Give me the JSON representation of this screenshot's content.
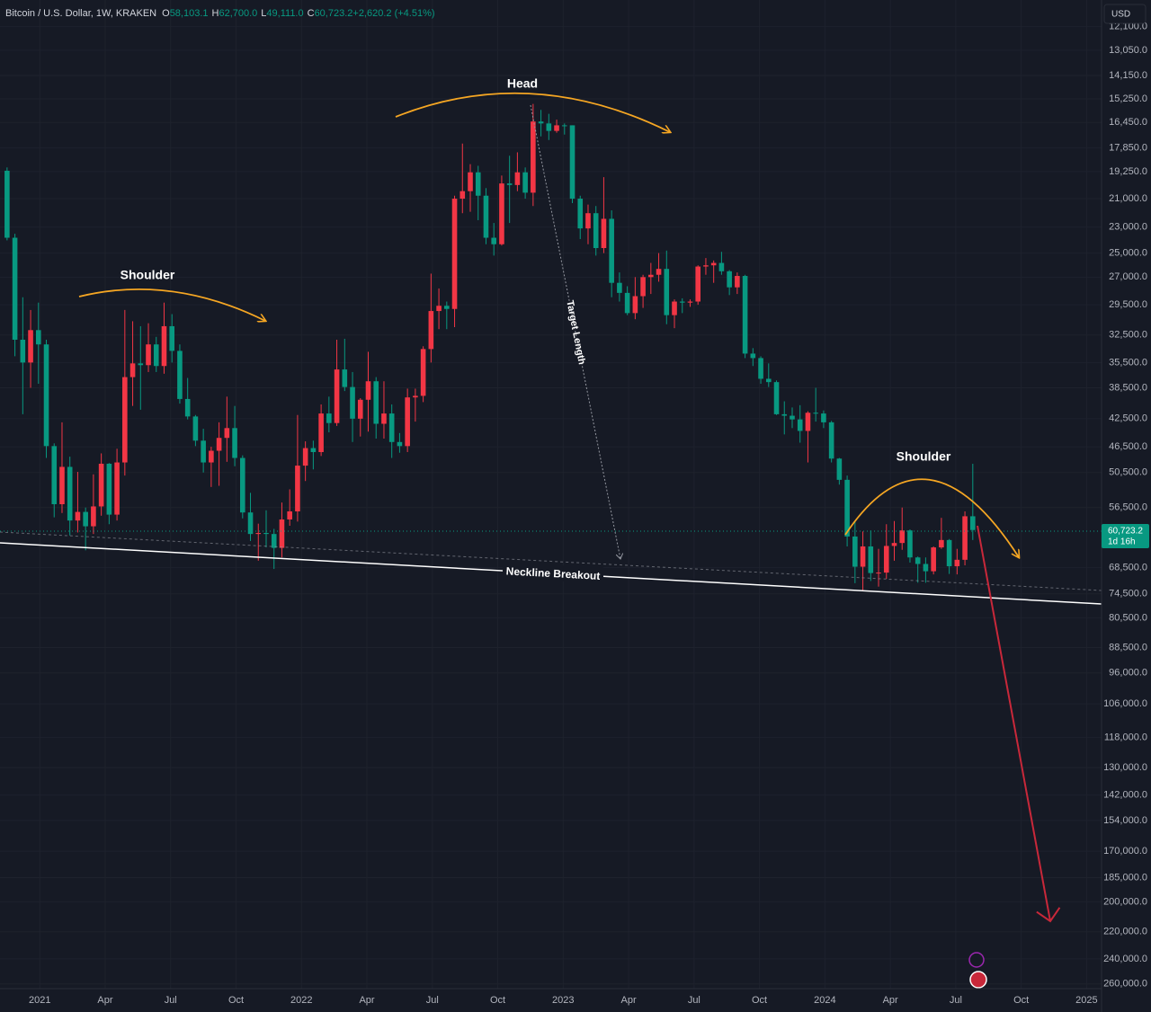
{
  "chart_data": {
    "type": "candlestick",
    "header": {
      "symbol": "Bitcoin / U.S. Dollar, 1W, KRAKEN",
      "fields": [
        {
          "key": "O",
          "value": "58,103.1"
        },
        {
          "key": "H",
          "value": "62,700.0"
        },
        {
          "key": "L",
          "value": "49,111.0"
        },
        {
          "key": "C",
          "value": "60,723.2"
        },
        {
          "key": "",
          "value": "+2,620.2 (+4.51%)"
        }
      ]
    },
    "currency": "USD",
    "annotations": {
      "head": "Head",
      "left_shoulder": "Shoulder",
      "right_shoulder": "Shoulder",
      "target": "Target Length",
      "neckline": "Neckline Breakout"
    },
    "last_price_label": "60,723.2",
    "countdown": "1d 16h",
    "colors": {
      "up": "#089981",
      "down": "#f23645"
    },
    "log": true,
    "inverted": true,
    "grid": true,
    "open": [
      19200,
      23800,
      33000,
      35500,
      32000,
      33500,
      46400,
      55900,
      49600,
      58900,
      57300,
      60000,
      56300,
      49100,
      57800,
      48900,
      37200,
      35600,
      35800,
      33500,
      35900,
      31600,
      34200,
      39900,
      42200,
      45600,
      48900,
      47100,
      45200,
      43800,
      48200,
      57400,
      61500,
      61300,
      61500,
      64300,
      58700,
      57200,
      49400,
      46700,
      47300,
      41800,
      43100,
      36300,
      38400,
      42500,
      40000,
      37700,
      43200,
      41800,
      45800,
      46400,
      39700,
      39500,
      34000,
      30100,
      29600,
      29900,
      21000,
      20500,
      19300,
      20800,
      23800,
      24300,
      20000,
      20100,
      19300,
      20600,
      16400,
      16500,
      16900,
      16600,
      16600,
      21000,
      23100,
      22000,
      24600,
      22400,
      27500,
      28400,
      30300,
      28700,
      27000,
      26800,
      26300,
      30500,
      29200,
      29300,
      29200,
      26100,
      26000,
      25800,
      26500,
      27900,
      26900,
      34500,
      35000,
      37400,
      37800,
      41900,
      42100,
      42600,
      44200,
      41700,
      41800,
      43000,
      48300,
      51700,
      62000,
      68300,
      64000,
      69700,
      69600,
      63900,
      63300,
      60800,
      66300,
      67700,
      69300,
      64200,
      62700,
      68200,
      66800,
      58103.1
    ],
    "high": [
      24000,
      34800,
      41900,
      38500,
      38000,
      48200,
      58300,
      57500,
      61800,
      61200,
      64800,
      61500,
      58000,
      59600,
      58900,
      51000,
      40800,
      41300,
      36600,
      36600,
      36800,
      35500,
      40500,
      42600,
      46400,
      50500,
      52900,
      52700,
      48800,
      49500,
      58500,
      62900,
      67000,
      64200,
      68800,
      66300,
      59900,
      59100,
      51900,
      50000,
      47900,
      44400,
      43500,
      38900,
      45800,
      45000,
      44300,
      45300,
      45300,
      48200,
      47400,
      47300,
      42900,
      40300,
      35500,
      31900,
      31900,
      31700,
      22000,
      21900,
      22500,
      24300,
      25200,
      24400,
      22700,
      20500,
      21000,
      21500,
      17200,
      17400,
      17000,
      17100,
      21300,
      23900,
      24300,
      25200,
      25000,
      28800,
      29200,
      30500,
      30900,
      29800,
      28500,
      27400,
      31400,
      31800,
      30300,
      29700,
      29500,
      26800,
      27500,
      26800,
      28600,
      28500,
      35000,
      35900,
      38000,
      38400,
      42000,
      44700,
      43800,
      45900,
      48900,
      42900,
      43800,
      48900,
      52500,
      64000,
      72000,
      73800,
      71500,
      72800,
      71000,
      67000,
      64700,
      67400,
      71900,
      71900,
      70000,
      64500,
      69900,
      70000,
      68000,
      62700
    ],
    "low": [
      19000,
      23500,
      28800,
      30000,
      29300,
      33000,
      46000,
      43000,
      48000,
      50400,
      56500,
      50800,
      47500,
      49000,
      46800,
      30000,
      31100,
      31600,
      31300,
      32700,
      29300,
      30400,
      33500,
      37300,
      42000,
      43900,
      46500,
      43000,
      39600,
      40800,
      47800,
      53900,
      59500,
      57000,
      60500,
      55600,
      53300,
      42000,
      45700,
      45600,
      40600,
      39600,
      33000,
      32900,
      36600,
      39800,
      34300,
      37200,
      37700,
      40600,
      44500,
      38600,
      38600,
      33700,
      26700,
      28000,
      29200,
      20800,
      17600,
      18800,
      18900,
      20300,
      22700,
      19500,
      18300,
      18100,
      19000,
      15500,
      15800,
      16000,
      16300,
      16500,
      16600,
      20800,
      21400,
      21500,
      19600,
      21800,
      26600,
      27800,
      27000,
      26800,
      25800,
      25000,
      24800,
      29000,
      28900,
      29000,
      26000,
      25400,
      25600,
      24900,
      26400,
      26600,
      26800,
      33900,
      34800,
      35600,
      37600,
      40200,
      41000,
      40700,
      41500,
      38500,
      41400,
      42800,
      48200,
      51000,
      59000,
      61000,
      60800,
      64500,
      59600,
      59000,
      56500,
      60600,
      66100,
      66300,
      64000,
      58400,
      62500,
      64500,
      57200,
      49111
    ],
    "close": [
      23800,
      33000,
      35500,
      32000,
      33500,
      46400,
      55900,
      49600,
      58900,
      57300,
      60000,
      56300,
      49100,
      57800,
      48900,
      37200,
      35600,
      35800,
      33500,
      35900,
      31600,
      34200,
      39900,
      42200,
      45600,
      48900,
      47100,
      45200,
      43800,
      48200,
      57400,
      61500,
      61300,
      61500,
      64300,
      58700,
      57200,
      49400,
      46700,
      47300,
      41800,
      43100,
      36300,
      38400,
      42500,
      40000,
      37700,
      43200,
      41800,
      45800,
      46400,
      39700,
      39500,
      34000,
      30100,
      29600,
      29900,
      21000,
      20500,
      19300,
      20800,
      23800,
      24300,
      20000,
      20100,
      19300,
      20600,
      16400,
      16500,
      16900,
      16600,
      16600,
      21000,
      23100,
      22000,
      24600,
      22400,
      27500,
      28400,
      30300,
      28700,
      27000,
      26800,
      26300,
      30500,
      29200,
      29300,
      29200,
      26100,
      26000,
      25800,
      26500,
      27900,
      26900,
      34500,
      35000,
      37400,
      37800,
      41900,
      42100,
      42600,
      44200,
      41700,
      41800,
      43000,
      48300,
      51700,
      62000,
      68300,
      64000,
      69700,
      69600,
      63900,
      63300,
      60800,
      66300,
      67700,
      69300,
      64200,
      62700,
      68200,
      66800,
      58103.1,
      60723.2
    ],
    "ylim": [
      11110,
      264000
    ],
    "yticks": [
      {
        "value": 12100,
        "label": "12,100.0"
      },
      {
        "value": 13050,
        "label": "13,050.0"
      },
      {
        "value": 14150,
        "label": "14,150.0"
      },
      {
        "value": 15250,
        "label": "15,250.0"
      },
      {
        "value": 16450,
        "label": "16,450.0"
      },
      {
        "value": 17850,
        "label": "17,850.0"
      },
      {
        "value": 19250,
        "label": "19,250.0"
      },
      {
        "value": 21000,
        "label": "21,000.0"
      },
      {
        "value": 23000,
        "label": "23,000.0"
      },
      {
        "value": 25000,
        "label": "25,000.0"
      },
      {
        "value": 27000,
        "label": "27,000.0"
      },
      {
        "value": 29500,
        "label": "29,500.0"
      },
      {
        "value": 32500,
        "label": "32,500.0"
      },
      {
        "value": 35500,
        "label": "35,500.0"
      },
      {
        "value": 38500,
        "label": "38,500.0"
      },
      {
        "value": 42500,
        "label": "42,500.0"
      },
      {
        "value": 46500,
        "label": "46,500.0"
      },
      {
        "value": 50500,
        "label": "50,500.0"
      },
      {
        "value": 56500,
        "label": "56,500.0"
      },
      {
        "value": 68500,
        "label": "68,500.0"
      },
      {
        "value": 74500,
        "label": "74,500.0"
      },
      {
        "value": 80500,
        "label": "80,500.0"
      },
      {
        "value": 88500,
        "label": "88,500.0"
      },
      {
        "value": 96000,
        "label": "96,000.0"
      },
      {
        "value": 106000,
        "label": "106,000.0"
      },
      {
        "value": 118000,
        "label": "118,000.0"
      },
      {
        "value": 130000,
        "label": "130,000.0"
      },
      {
        "value": 142000,
        "label": "142,000.0"
      },
      {
        "value": 154000,
        "label": "154,000.0"
      },
      {
        "value": 170000,
        "label": "170,000.0"
      },
      {
        "value": 185000,
        "label": "185,000.0"
      },
      {
        "value": 200000,
        "label": "200,000.0"
      },
      {
        "value": 220000,
        "label": "220,000.0"
      },
      {
        "value": 240000,
        "label": "240,000.0"
      },
      {
        "value": 260000,
        "label": "260,000.0"
      }
    ],
    "xlim": [
      -0.9,
      139.4
    ],
    "xticks": [
      {
        "value": 4.17,
        "label": "2021"
      },
      {
        "value": 12.5,
        "label": "Apr"
      },
      {
        "value": 20.83,
        "label": "Jul"
      },
      {
        "value": 29.17,
        "label": "Oct"
      },
      {
        "value": 37.5,
        "label": "2022"
      },
      {
        "value": 45.83,
        "label": "Apr"
      },
      {
        "value": 54.17,
        "label": "Jul"
      },
      {
        "value": 62.5,
        "label": "Oct"
      },
      {
        "value": 70.83,
        "label": "2023"
      },
      {
        "value": 79.17,
        "label": "Apr"
      },
      {
        "value": 87.5,
        "label": "Jul"
      },
      {
        "value": 95.83,
        "label": "Oct"
      },
      {
        "value": 104.17,
        "label": "2024"
      },
      {
        "value": 112.5,
        "label": "Apr"
      },
      {
        "value": 120.83,
        "label": "Jul"
      },
      {
        "value": 129.17,
        "label": "Oct"
      },
      {
        "value": 137.5,
        "label": "2025"
      }
    ]
  }
}
